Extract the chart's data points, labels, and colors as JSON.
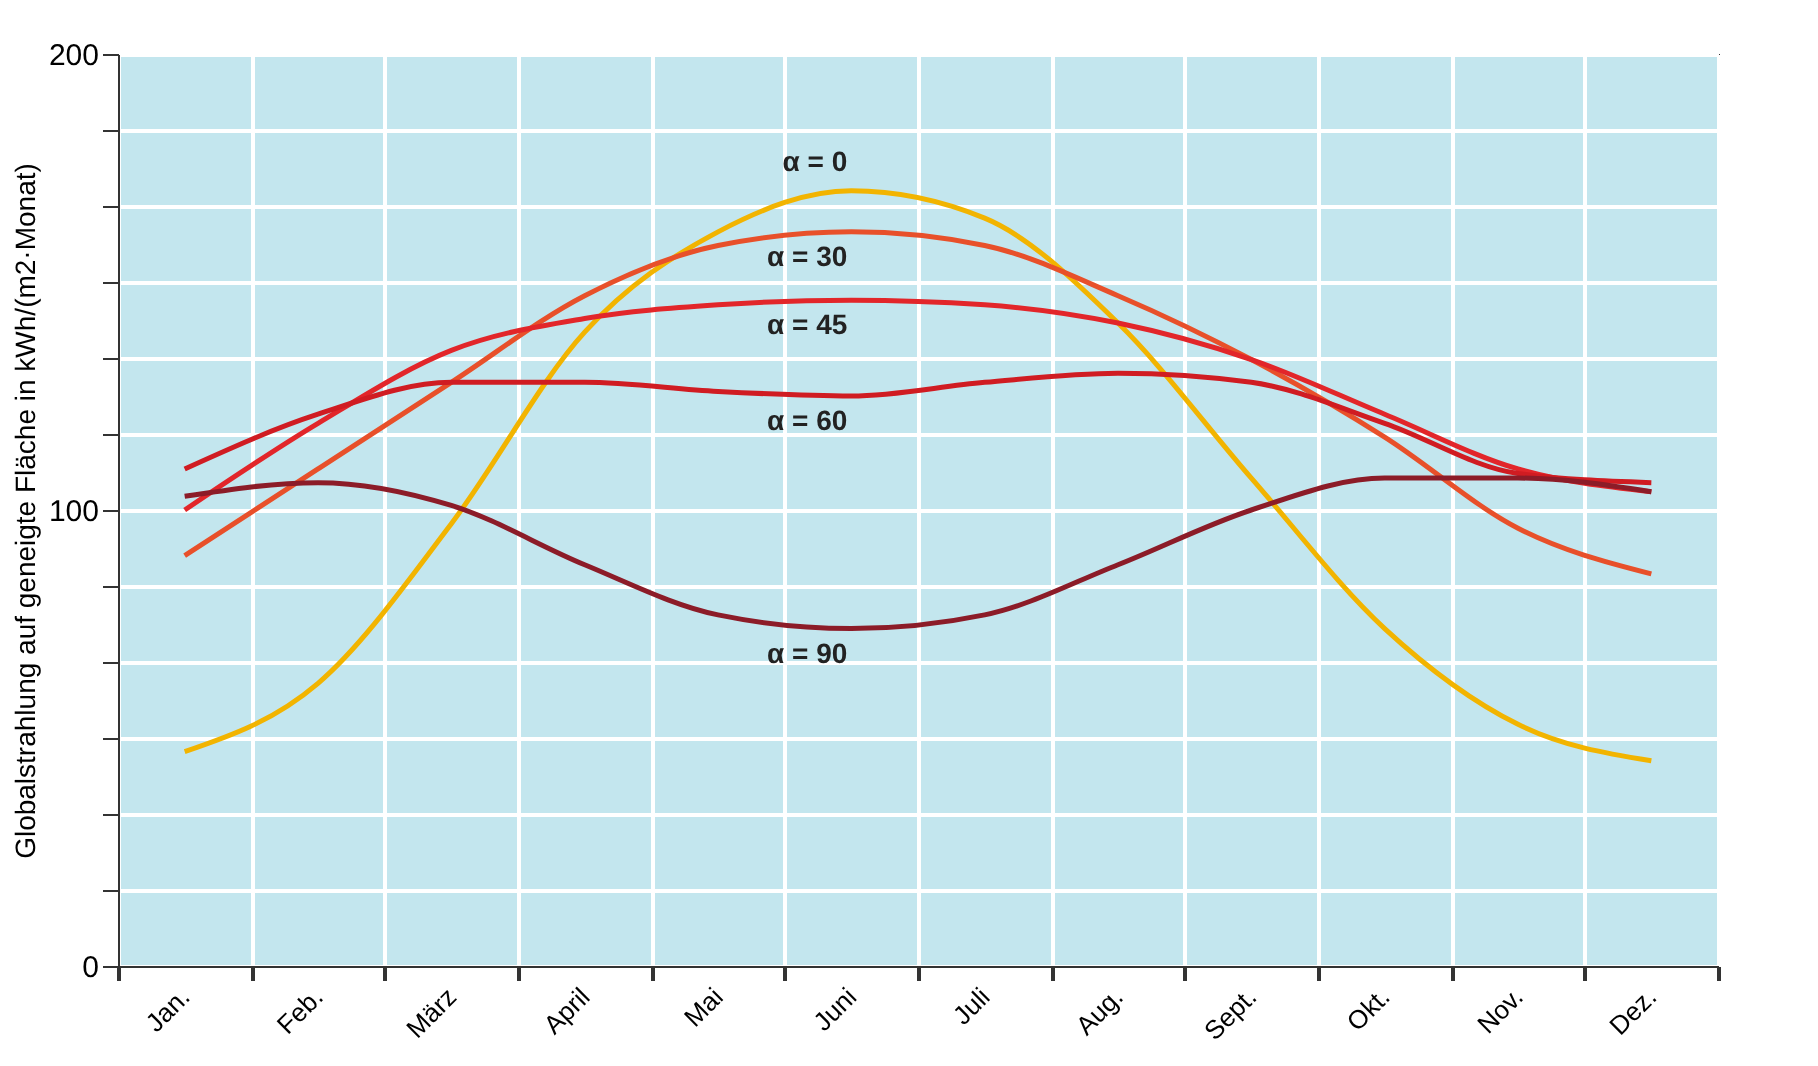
{
  "chart_data": {
    "type": "line",
    "ylabel": "Globalstrahlung auf geneigte Fläche in kWh/(m2·Monat)",
    "categories": [
      "Jan.",
      "Feb.",
      "März",
      "April",
      "Mai",
      "Juni",
      "Juli",
      "Aug.",
      "Sept.",
      "Okt.",
      "Nov.",
      "Dez."
    ],
    "series": [
      {
        "name": "α = 0",
        "color": "#f2b400",
        "values": [
          47,
          62,
          97,
          139,
          161,
          170,
          164,
          141,
          107,
          74,
          53,
          45
        ]
      },
      {
        "name": "α = 30",
        "color": "#e8502a",
        "values": [
          90,
          109,
          128,
          147,
          158,
          161,
          158,
          147,
          133,
          116,
          96,
          86
        ]
      },
      {
        "name": "α = 45",
        "color": "#e2262a",
        "values": [
          100,
          119,
          135,
          142,
          145,
          146,
          145,
          141,
          133,
          121,
          109,
          104
        ]
      },
      {
        "name": "α = 60",
        "color": "#d01c22",
        "values": [
          109,
          121,
          128,
          128,
          126,
          125,
          128,
          130,
          128,
          119,
          108,
          106
        ]
      },
      {
        "name": "α = 90",
        "color": "#8c1c28",
        "values": [
          103,
          106,
          101,
          88,
          77,
          74,
          77,
          88,
          100,
          107,
          107,
          104
        ]
      }
    ],
    "ylim": [
      0,
      200
    ],
    "yticks": [
      0,
      {
        "value": 16.67,
        "label": null
      },
      {
        "value": 33.33,
        "label": null
      },
      {
        "value": 50,
        "label": null
      },
      {
        "value": 66.67,
        "label": null
      },
      {
        "value": 83.33,
        "label": null
      },
      100,
      {
        "value": 116.67,
        "label": null
      },
      {
        "value": 133.33,
        "label": null
      },
      {
        "value": 150,
        "label": null
      },
      {
        "value": 166.67,
        "label": null
      },
      {
        "value": 183.33,
        "label": null
      },
      200
    ],
    "grid": true,
    "line_style": "solid",
    "marker": "none"
  }
}
